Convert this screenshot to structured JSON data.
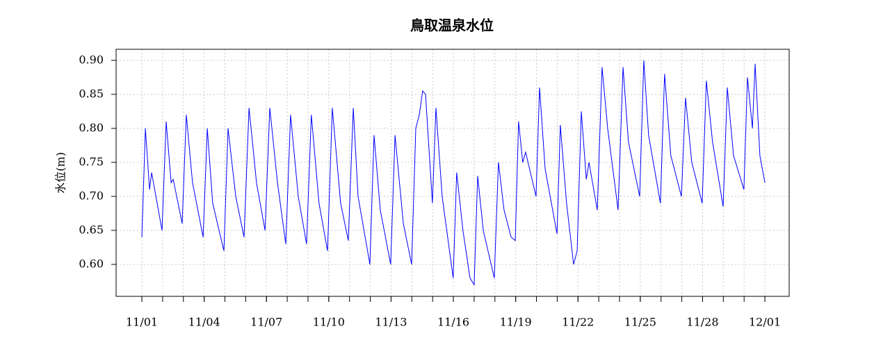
{
  "chart_data": {
    "type": "line",
    "title": "鳥取温泉水位",
    "y_label": "水位(m)",
    "color": "#0000ff",
    "grid": true,
    "xlim": [
      -1.24,
      31.17
    ],
    "ylim": [
      0.553,
      0.9163
    ],
    "xticks": [
      {
        "value": 0,
        "label": "11/01"
      },
      {
        "value": 3,
        "label": "11/04"
      },
      {
        "value": 6,
        "label": "11/07"
      },
      {
        "value": 9,
        "label": "11/10"
      },
      {
        "value": 12,
        "label": "11/13"
      },
      {
        "value": 15,
        "label": "11/16"
      },
      {
        "value": 18,
        "label": "11/19"
      },
      {
        "value": 21,
        "label": "11/22"
      },
      {
        "value": 24,
        "label": "11/25"
      },
      {
        "value": 27,
        "label": "11/28"
      },
      {
        "value": 30,
        "label": "12/01"
      }
    ],
    "xminorticks": [
      0,
      1,
      2,
      3,
      4,
      5,
      6,
      7,
      8,
      9,
      10,
      11,
      12,
      13,
      14,
      15,
      16,
      17,
      18,
      19,
      20,
      21,
      22,
      23,
      24,
      25,
      26,
      27,
      28,
      29,
      30
    ],
    "yticks": [
      {
        "value": 0.6,
        "label": "0.60"
      },
      {
        "value": 0.65,
        "label": "0.65"
      },
      {
        "value": 0.7,
        "label": "0.70"
      },
      {
        "value": 0.75,
        "label": "0.75"
      },
      {
        "value": 0.8,
        "label": "0.80"
      },
      {
        "value": 0.85,
        "label": "0.85"
      },
      {
        "value": 0.9,
        "label": "0.90"
      }
    ],
    "x": [
      0,
      0.17,
      0.37,
      0.47,
      0.97,
      1.17,
      1.41,
      1.51,
      1.94,
      2.14,
      2.44,
      2.95,
      3.15,
      3.41,
      3.95,
      4.15,
      4.52,
      4.92,
      5.16,
      5.52,
      5.93,
      6.16,
      6.53,
      6.93,
      7.16,
      7.53,
      7.93,
      8.16,
      8.53,
      8.94,
      9.17,
      9.57,
      9.94,
      10.18,
      10.41,
      10.98,
      11.18,
      11.48,
      11.98,
      12.19,
      12.59,
      12.99,
      13.19,
      13.36,
      13.52,
      13.66,
      13.99,
      14.16,
      14.46,
      14.99,
      15.16,
      15.46,
      15.8,
      16.0,
      16.17,
      16.44,
      16.97,
      17.17,
      17.44,
      17.78,
      17.98,
      18.14,
      18.34,
      18.48,
      18.98,
      19.15,
      19.42,
      19.99,
      20.15,
      20.45,
      20.79,
      20.96,
      21.16,
      21.4,
      21.53,
      21.93,
      22.16,
      22.43,
      22.93,
      23.17,
      23.43,
      23.97,
      24.17,
      24.4,
      24.97,
      25.17,
      25.47,
      25.98,
      26.18,
      26.48,
      26.98,
      27.18,
      27.48,
      27.99,
      28.19,
      28.49,
      28.99,
      29.16,
      29.4,
      29.53,
      29.76,
      30.0
    ],
    "values": [
      0.64,
      0.8,
      0.71,
      0.735,
      0.65,
      0.81,
      0.72,
      0.725,
      0.66,
      0.82,
      0.72,
      0.64,
      0.8,
      0.69,
      0.62,
      0.8,
      0.7,
      0.64,
      0.83,
      0.72,
      0.65,
      0.83,
      0.72,
      0.63,
      0.82,
      0.7,
      0.63,
      0.82,
      0.69,
      0.62,
      0.83,
      0.69,
      0.635,
      0.83,
      0.7,
      0.6,
      0.79,
      0.68,
      0.6,
      0.79,
      0.66,
      0.6,
      0.8,
      0.82,
      0.855,
      0.85,
      0.69,
      0.83,
      0.7,
      0.58,
      0.735,
      0.65,
      0.58,
      0.57,
      0.73,
      0.65,
      0.58,
      0.75,
      0.68,
      0.64,
      0.635,
      0.81,
      0.75,
      0.765,
      0.7,
      0.86,
      0.74,
      0.645,
      0.805,
      0.69,
      0.6,
      0.62,
      0.825,
      0.725,
      0.75,
      0.68,
      0.89,
      0.8,
      0.68,
      0.89,
      0.78,
      0.7,
      0.9,
      0.79,
      0.69,
      0.88,
      0.76,
      0.7,
      0.845,
      0.75,
      0.69,
      0.87,
      0.78,
      0.685,
      0.86,
      0.76,
      0.71,
      0.875,
      0.8,
      0.895,
      0.76,
      0.72
    ]
  }
}
